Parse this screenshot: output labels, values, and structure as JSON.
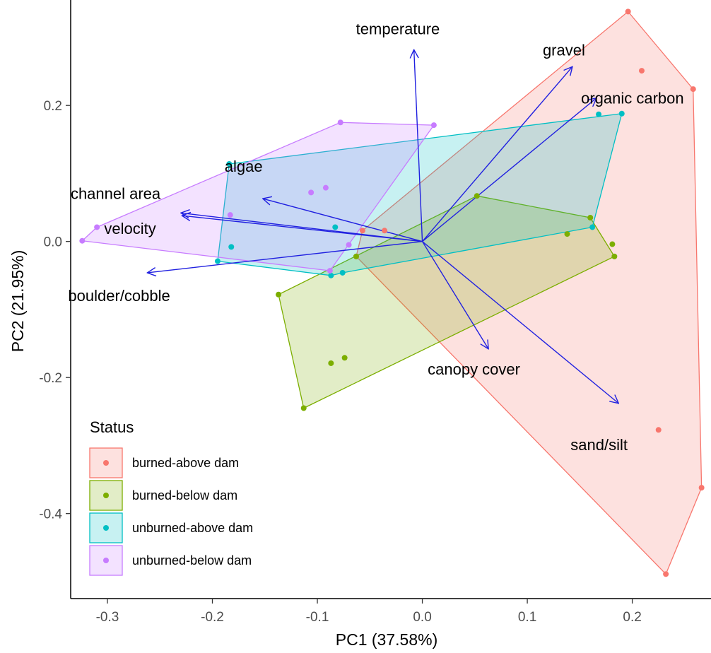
{
  "chart_data": {
    "type": "scatter",
    "subtype": "pca-biplot",
    "xlabel": "PC1 (37.58%)",
    "ylabel": "PC2 (21.95%)",
    "xlim": [
      -0.335,
      0.275
    ],
    "ylim": [
      -0.525,
      0.355
    ],
    "xticks": [
      -0.3,
      -0.2,
      -0.1,
      0.0,
      0.1,
      0.2
    ],
    "yticks": [
      -0.4,
      -0.2,
      0.0,
      0.2
    ],
    "xtick_labels": [
      "-0.3",
      "-0.2",
      "-0.1",
      "0.0",
      "0.1",
      "0.2"
    ],
    "ytick_labels": [
      "-0.4",
      "-0.2",
      "0.0",
      "0.2"
    ],
    "grid": false,
    "legend": {
      "title": "Status",
      "position": "bottom-left"
    },
    "series": [
      {
        "name": "burned-above dam",
        "color": "#F8766D",
        "points": [
          [
            0.196,
            0.338
          ],
          [
            0.209,
            0.251
          ],
          [
            0.258,
            0.224
          ],
          [
            0.266,
            -0.362
          ],
          [
            0.232,
            -0.489
          ],
          [
            0.225,
            -0.277
          ],
          [
            -0.057,
            0.016
          ],
          [
            -0.036,
            0.016
          ],
          [
            -0.063,
            -0.022
          ]
        ],
        "hull": [
          [
            0.196,
            0.338
          ],
          [
            0.258,
            0.224
          ],
          [
            0.266,
            -0.362
          ],
          [
            0.232,
            -0.489
          ],
          [
            -0.063,
            -0.022
          ],
          [
            -0.057,
            0.016
          ]
        ]
      },
      {
        "name": "burned-below dam",
        "color": "#7CAE00",
        "points": [
          [
            0.052,
            0.067
          ],
          [
            0.16,
            0.035
          ],
          [
            0.181,
            -0.004
          ],
          [
            0.183,
            -0.022
          ],
          [
            0.138,
            0.011
          ],
          [
            -0.137,
            -0.078
          ],
          [
            -0.087,
            -0.179
          ],
          [
            -0.074,
            -0.171
          ],
          [
            -0.113,
            -0.245
          ],
          [
            -0.063,
            -0.022
          ]
        ],
        "hull": [
          [
            0.052,
            0.067
          ],
          [
            0.16,
            0.035
          ],
          [
            0.183,
            -0.022
          ],
          [
            -0.113,
            -0.245
          ],
          [
            -0.137,
            -0.078
          ]
        ]
      },
      {
        "name": "unburned-above dam",
        "color": "#00BFC4",
        "points": [
          [
            -0.184,
            0.114
          ],
          [
            0.168,
            0.187
          ],
          [
            0.19,
            0.188
          ],
          [
            0.162,
            0.021
          ],
          [
            -0.083,
            0.021
          ],
          [
            -0.182,
            -0.008
          ],
          [
            -0.195,
            -0.029
          ],
          [
            -0.087,
            -0.05
          ],
          [
            -0.076,
            -0.046
          ]
        ],
        "hull": [
          [
            -0.184,
            0.114
          ],
          [
            0.19,
            0.188
          ],
          [
            0.162,
            0.021
          ],
          [
            -0.076,
            -0.046
          ],
          [
            -0.087,
            -0.05
          ],
          [
            -0.195,
            -0.029
          ]
        ]
      },
      {
        "name": "unburned-below dam",
        "color": "#C77CFF",
        "points": [
          [
            -0.078,
            0.175
          ],
          [
            0.011,
            0.171
          ],
          [
            -0.106,
            0.072
          ],
          [
            -0.092,
            0.079
          ],
          [
            -0.183,
            0.039
          ],
          [
            -0.31,
            0.021
          ],
          [
            -0.324,
            0.001
          ],
          [
            -0.07,
            -0.005
          ],
          [
            -0.088,
            -0.043
          ]
        ],
        "hull": [
          [
            -0.078,
            0.175
          ],
          [
            0.011,
            0.171
          ],
          [
            -0.088,
            -0.043
          ],
          [
            -0.324,
            0.001
          ],
          [
            -0.31,
            0.021
          ]
        ]
      }
    ],
    "vectors": {
      "color": "#2020E0",
      "origin": [
        0,
        0
      ],
      "items": [
        {
          "label": "temperature",
          "end": [
            -0.008,
            0.282
          ]
        },
        {
          "label": "gravel",
          "end": [
            0.143,
            0.257
          ]
        },
        {
          "label": "organic carbon",
          "end": [
            0.166,
            0.211
          ]
        },
        {
          "label": "algae",
          "end": [
            -0.152,
            0.063
          ]
        },
        {
          "label": "channel area",
          "end": [
            -0.23,
            0.042
          ]
        },
        {
          "label": "velocity",
          "end": [
            -0.229,
            0.038
          ]
        },
        {
          "label": "boulder/cobble",
          "end": [
            -0.262,
            -0.046
          ]
        },
        {
          "label": "canopy cover",
          "end": [
            0.063,
            -0.158
          ]
        },
        {
          "label": "sand/silt",
          "end": [
            0.187,
            -0.238
          ]
        }
      ]
    }
  }
}
